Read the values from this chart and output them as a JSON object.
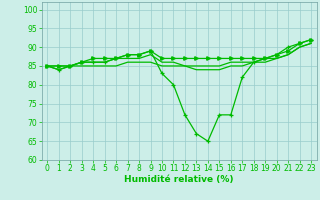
{
  "xlabel": "Humidité relative (%)",
  "bg_color": "#cceee8",
  "grid_color": "#99cccc",
  "line_color": "#00bb00",
  "ylim": [
    60,
    102
  ],
  "xlim": [
    -0.5,
    23.5
  ],
  "yticks": [
    60,
    65,
    70,
    75,
    80,
    85,
    90,
    95,
    100
  ],
  "xticks": [
    0,
    1,
    2,
    3,
    4,
    5,
    6,
    7,
    8,
    9,
    10,
    11,
    12,
    13,
    14,
    15,
    16,
    17,
    18,
    19,
    20,
    21,
    22,
    23
  ],
  "curve_dip_markers": [
    85,
    84,
    85,
    86,
    86,
    86,
    87,
    88,
    88,
    89,
    83,
    80,
    72,
    67,
    65,
    72,
    72,
    82,
    86,
    87,
    88,
    90,
    91,
    92
  ],
  "curve_flat_upper": [
    85,
    85,
    85,
    86,
    87,
    87,
    87,
    88,
    88,
    89,
    87,
    87,
    87,
    87,
    87,
    87,
    87,
    87,
    87,
    87,
    88,
    89,
    91,
    92
  ],
  "curve_flat_lower": [
    85,
    84,
    85,
    85,
    85,
    85,
    85,
    86,
    86,
    86,
    85,
    85,
    85,
    84,
    84,
    84,
    85,
    85,
    86,
    86,
    87,
    88,
    90,
    91
  ],
  "curve_mid": [
    85,
    85,
    85,
    86,
    86,
    86,
    87,
    87,
    87,
    88,
    86,
    86,
    85,
    85,
    85,
    85,
    86,
    86,
    86,
    87,
    87,
    88,
    90,
    91
  ]
}
